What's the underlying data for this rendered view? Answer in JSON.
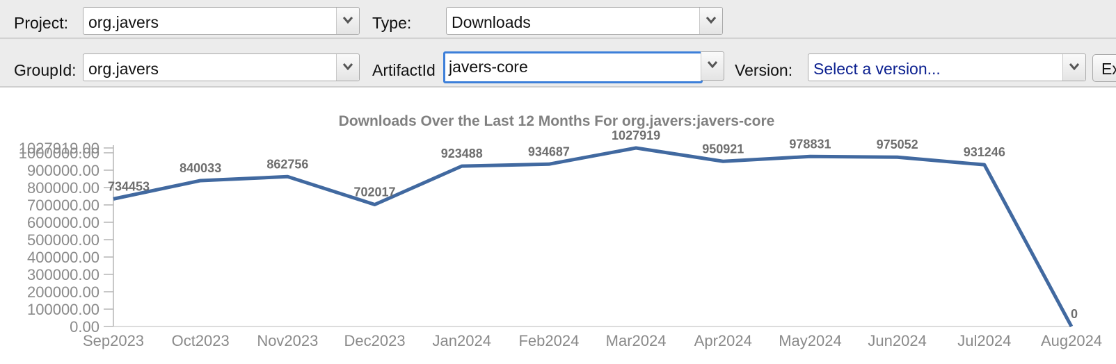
{
  "toolbar": {
    "project_label": "Project:",
    "project_value": "org.javers",
    "type_label": "Type:",
    "type_value": "Downloads",
    "groupid_label": "GroupId:",
    "groupid_value": "org.javers",
    "artifactid_label": "ArtifactId",
    "artifactid_value": "javers-core",
    "version_label": "Version:",
    "version_placeholder": "Select a version...",
    "export_button_label": "Ex",
    "dropdown_icon": "chevron-down-icon"
  },
  "chart_data": {
    "type": "line",
    "title": "Downloads Over the Last 12 Months For org.javers:javers-core",
    "xlabel": "",
    "ylabel": "",
    "categories": [
      "Sep2023",
      "Oct2023",
      "Nov2023",
      "Dec2023",
      "Jan2024",
      "Feb2024",
      "Mar2024",
      "Apr2024",
      "May2024",
      "Jun2024",
      "Jul2024",
      "Aug2024"
    ],
    "series": [
      {
        "values": [
          734453,
          840033,
          862756,
          702017,
          923488,
          934687,
          1027919,
          950921,
          978831,
          975052,
          931246,
          0
        ]
      }
    ],
    "data_labels": [
      "734453",
      "840033",
      "862756",
      "702017",
      "923488",
      "934687",
      "1027919",
      "950921",
      "978831",
      "975052",
      "931246",
      "0"
    ],
    "yticks": [
      "0.00",
      "100000.00",
      "200000.00",
      "300000.00",
      "400000.00",
      "500000.00",
      "600000.00",
      "700000.00",
      "800000.00",
      "900000.00",
      "1000000.00",
      "1027919.00"
    ],
    "ytick_values": [
      0,
      100000,
      200000,
      300000,
      400000,
      500000,
      600000,
      700000,
      800000,
      900000,
      1000000,
      1027919
    ],
    "ylim": [
      0,
      1027919
    ],
    "grid": false,
    "legend": "none",
    "line_color": "#4169a0"
  }
}
